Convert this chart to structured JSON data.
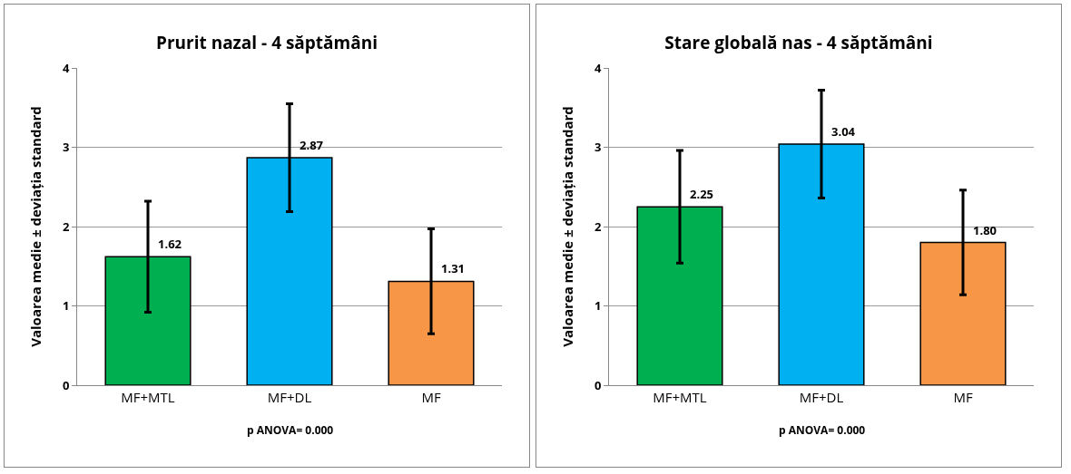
{
  "chart_data": [
    {
      "type": "bar",
      "title": "Prurit nazal - 4 săptămâni",
      "ylabel": "Valoarea medie ± deviația standard",
      "categories": [
        "MF+MTL",
        "MF+DL",
        "MF"
      ],
      "values": [
        1.62,
        2.87,
        1.31
      ],
      "value_labels": [
        "1.62",
        "2.87",
        "1.31"
      ],
      "errors": [
        0.7,
        0.68,
        0.66
      ],
      "colors": [
        "#00b050",
        "#00b0f0",
        "#f79646"
      ],
      "ylim": [
        0,
        4
      ],
      "yticks": [
        0,
        1,
        2,
        3,
        4
      ],
      "grid": "y",
      "annotations": [
        "p ANOVA= 0.000"
      ]
    },
    {
      "type": "bar",
      "title": "Stare globală nas - 4 săptămâni",
      "ylabel": "Valoarea medie ± deviația standard",
      "categories": [
        "MF+MTL",
        "MF+DL",
        "MF"
      ],
      "values": [
        2.25,
        3.04,
        1.8
      ],
      "value_labels": [
        "2.25",
        "3.04",
        "1.80"
      ],
      "errors": [
        0.71,
        0.68,
        0.66
      ],
      "colors": [
        "#00b050",
        "#00b0f0",
        "#f79646"
      ],
      "ylim": [
        0,
        4
      ],
      "yticks": [
        0,
        1,
        2,
        3,
        4
      ],
      "grid": "y",
      "annotations": [
        "p ANOVA= 0.000"
      ]
    }
  ]
}
